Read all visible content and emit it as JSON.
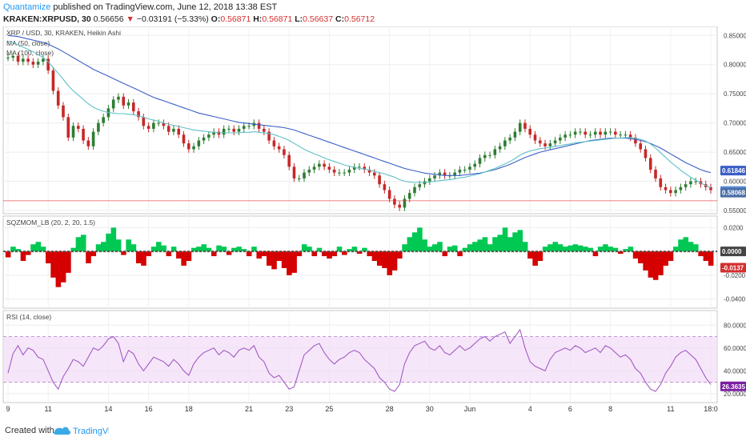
{
  "header": {
    "author": "Quantamize",
    "published": "published on TradingView.com, June 12, 2018 13:38 EST",
    "symbol": "KRAKEN:XRPUSD, 30",
    "last": "0.56656",
    "change_arrow": "▼",
    "change": "−0.03191 (−5.33%)",
    "o_label": "O:",
    "o_value": "0.56871",
    "h_label": "H:",
    "h_value": "0.56871",
    "l_label": "L:",
    "l_value": "0.56637",
    "c_label": "C:",
    "c_value": "0.56712"
  },
  "footer": {
    "created_with": "Created with",
    "brand": "TradingView"
  },
  "colors": {
    "ma50": "#5ec0c9",
    "ma100": "#3a5fc8",
    "price_line": "#e53935",
    "candle_up": "#2e7d32",
    "candle_down": "#c62828",
    "sqz_up": "#00c853",
    "sqz_down": "#d50000",
    "rsi": "#9c4fc0",
    "rsi_band": "#f1dcf7",
    "badge_ma100": "#3a5fc8",
    "badge_ma50": "#5b8fd9",
    "badge_price": "#4a6ea8",
    "badge_zero": "#444444",
    "badge_sqz": "#d32f2f",
    "badge_rsi": "#7b1fa2"
  },
  "chart_data": [
    {
      "panel": "price",
      "type": "line",
      "title": "XRP / USD, 30, KRAKEN, Heikin Ashi",
      "legend": [
        "MA (50, close)",
        "MA (100, close)"
      ],
      "ylim": [
        0.55,
        0.86
      ],
      "yticks": [
        "0.85000",
        "0.80000",
        "0.75000",
        "0.70000",
        "0.65000",
        "0.60000",
        "0.55000"
      ],
      "ytick_values": [
        0.85,
        0.8,
        0.75,
        0.7,
        0.65,
        0.6,
        0.55
      ],
      "xticks": [
        "9",
        "11",
        "14",
        "16",
        "18",
        "21",
        "23",
        "25",
        "28",
        "30",
        "Jun",
        "4",
        "6",
        "8",
        "11",
        "18:0"
      ],
      "xtick_index": [
        0,
        8,
        20,
        28,
        36,
        48,
        56,
        64,
        76,
        84,
        92,
        104,
        112,
        120,
        132,
        140
      ],
      "n": 141,
      "close": [
        0.812,
        0.815,
        0.805,
        0.81,
        0.805,
        0.8,
        0.805,
        0.81,
        0.79,
        0.755,
        0.73,
        0.71,
        0.675,
        0.695,
        0.69,
        0.67,
        0.66,
        0.685,
        0.7,
        0.71,
        0.725,
        0.74,
        0.745,
        0.73,
        0.735,
        0.72,
        0.71,
        0.695,
        0.69,
        0.7,
        0.7,
        0.695,
        0.685,
        0.69,
        0.68,
        0.665,
        0.655,
        0.66,
        0.67,
        0.675,
        0.68,
        0.685,
        0.68,
        0.69,
        0.69,
        0.685,
        0.69,
        0.695,
        0.695,
        0.7,
        0.69,
        0.685,
        0.67,
        0.66,
        0.655,
        0.645,
        0.625,
        0.605,
        0.605,
        0.615,
        0.62,
        0.625,
        0.63,
        0.625,
        0.62,
        0.615,
        0.615,
        0.615,
        0.62,
        0.625,
        0.625,
        0.62,
        0.615,
        0.61,
        0.595,
        0.585,
        0.57,
        0.56,
        0.555,
        0.57,
        0.58,
        0.59,
        0.595,
        0.6,
        0.605,
        0.61,
        0.615,
        0.61,
        0.61,
        0.615,
        0.62,
        0.62,
        0.625,
        0.63,
        0.64,
        0.645,
        0.645,
        0.655,
        0.66,
        0.67,
        0.675,
        0.685,
        0.7,
        0.69,
        0.68,
        0.67,
        0.665,
        0.66,
        0.665,
        0.67,
        0.675,
        0.68,
        0.68,
        0.685,
        0.685,
        0.68,
        0.68,
        0.685,
        0.68,
        0.685,
        0.685,
        0.68,
        0.68,
        0.68,
        0.675,
        0.665,
        0.655,
        0.64,
        0.62,
        0.605,
        0.59,
        0.585,
        0.58,
        0.585,
        0.59,
        0.595,
        0.6,
        0.6,
        0.595,
        0.59,
        0.585
      ],
      "ma50": [
        0.84,
        0.838,
        0.834,
        0.83,
        0.826,
        0.822,
        0.817,
        0.812,
        0.805,
        0.795,
        0.785,
        0.775,
        0.764,
        0.755,
        0.748,
        0.74,
        0.733,
        0.727,
        0.723,
        0.72,
        0.718,
        0.717,
        0.716,
        0.716,
        0.715,
        0.714,
        0.712,
        0.71,
        0.707,
        0.705,
        0.703,
        0.7,
        0.698,
        0.696,
        0.694,
        0.692,
        0.69,
        0.688,
        0.687,
        0.686,
        0.685,
        0.684,
        0.683,
        0.683,
        0.683,
        0.683,
        0.683,
        0.684,
        0.684,
        0.685,
        0.684,
        0.683,
        0.682,
        0.68,
        0.677,
        0.674,
        0.67,
        0.665,
        0.66,
        0.655,
        0.651,
        0.647,
        0.644,
        0.64,
        0.637,
        0.634,
        0.631,
        0.628,
        0.626,
        0.624,
        0.622,
        0.621,
        0.619,
        0.617,
        0.615,
        0.613,
        0.61,
        0.607,
        0.603,
        0.6,
        0.599,
        0.598,
        0.598,
        0.598,
        0.599,
        0.6,
        0.601,
        0.602,
        0.603,
        0.604,
        0.606,
        0.607,
        0.609,
        0.611,
        0.613,
        0.616,
        0.619,
        0.622,
        0.626,
        0.63,
        0.634,
        0.639,
        0.645,
        0.649,
        0.652,
        0.654,
        0.656,
        0.657,
        0.658,
        0.66,
        0.661,
        0.663,
        0.664,
        0.666,
        0.667,
        0.668,
        0.669,
        0.67,
        0.671,
        0.672,
        0.673,
        0.674,
        0.674,
        0.675,
        0.675,
        0.674,
        0.672,
        0.669,
        0.664,
        0.657,
        0.649,
        0.641,
        0.633,
        0.626,
        0.619,
        0.613,
        0.607,
        0.602,
        0.597,
        0.593,
        0.589
      ],
      "ma100": [
        0.85,
        0.849,
        0.848,
        0.846,
        0.844,
        0.842,
        0.84,
        0.838,
        0.835,
        0.831,
        0.827,
        0.822,
        0.817,
        0.812,
        0.807,
        0.802,
        0.797,
        0.792,
        0.788,
        0.784,
        0.78,
        0.776,
        0.772,
        0.768,
        0.764,
        0.76,
        0.756,
        0.752,
        0.748,
        0.744,
        0.741,
        0.738,
        0.735,
        0.732,
        0.729,
        0.726,
        0.723,
        0.72,
        0.717,
        0.715,
        0.713,
        0.711,
        0.709,
        0.707,
        0.705,
        0.703,
        0.701,
        0.7,
        0.699,
        0.698,
        0.697,
        0.696,
        0.695,
        0.694,
        0.693,
        0.692,
        0.69,
        0.688,
        0.685,
        0.682,
        0.679,
        0.676,
        0.673,
        0.67,
        0.667,
        0.664,
        0.661,
        0.658,
        0.655,
        0.652,
        0.649,
        0.646,
        0.643,
        0.64,
        0.637,
        0.634,
        0.631,
        0.628,
        0.625,
        0.622,
        0.62,
        0.618,
        0.616,
        0.614,
        0.613,
        0.612,
        0.611,
        0.61,
        0.61,
        0.61,
        0.61,
        0.611,
        0.612,
        0.613,
        0.614,
        0.616,
        0.618,
        0.62,
        0.623,
        0.626,
        0.629,
        0.633,
        0.637,
        0.641,
        0.644,
        0.647,
        0.65,
        0.652,
        0.654,
        0.656,
        0.658,
        0.66,
        0.662,
        0.664,
        0.666,
        0.668,
        0.67,
        0.671,
        0.672,
        0.673,
        0.674,
        0.674,
        0.674,
        0.674,
        0.673,
        0.672,
        0.67,
        0.668,
        0.665,
        0.661,
        0.657,
        0.652,
        0.647,
        0.642,
        0.637,
        0.632,
        0.628,
        0.624,
        0.62,
        0.617,
        0.615
      ],
      "price_line": 0.5667,
      "badges": [
        "0.61846",
        "0.58346",
        "0.58068"
      ]
    },
    {
      "panel": "squeeze_momentum",
      "type": "area",
      "title": "SQZMOM_LB (20, 2, 20, 1.5)",
      "ylim": [
        -0.045,
        0.027
      ],
      "yticks": [
        "0.0200",
        "0.0000",
        "-0.0200",
        "-0.0400"
      ],
      "ytick_values": [
        0.02,
        0.0,
        -0.02,
        -0.04
      ],
      "values": [
        -0.005,
        0.004,
        0.002,
        -0.008,
        -0.003,
        0.006,
        0.008,
        0.004,
        -0.01,
        -0.022,
        -0.03,
        -0.026,
        -0.018,
        0.003,
        0.012,
        0.014,
        -0.01,
        -0.004,
        0.006,
        0.008,
        0.015,
        0.02,
        0.01,
        -0.003,
        0.01,
        0.006,
        -0.01,
        -0.012,
        -0.004,
        0.004,
        0.008,
        0.005,
        -0.004,
        0.004,
        -0.006,
        -0.012,
        -0.008,
        0.003,
        0.004,
        0.006,
        0.003,
        -0.004,
        0.005,
        0.004,
        -0.003,
        0.003,
        0.004,
        0.002,
        -0.004,
        0.004,
        -0.006,
        -0.004,
        -0.012,
        -0.015,
        -0.008,
        -0.014,
        -0.02,
        -0.018,
        -0.004,
        0.006,
        0.004,
        -0.004,
        0.003,
        -0.004,
        -0.006,
        -0.004,
        0.004,
        -0.003,
        0.002,
        0.004,
        -0.002,
        0.003,
        -0.004,
        -0.008,
        -0.012,
        -0.014,
        -0.02,
        -0.016,
        -0.006,
        0.006,
        0.012,
        0.016,
        0.02,
        0.01,
        0.004,
        0.006,
        0.008,
        -0.004,
        0.004,
        0.005,
        -0.004,
        0.003,
        0.006,
        0.008,
        0.01,
        0.012,
        0.006,
        0.012,
        0.014,
        0.02,
        0.012,
        0.016,
        0.018,
        0.008,
        -0.006,
        -0.012,
        -0.008,
        0.004,
        0.006,
        0.008,
        0.006,
        0.004,
        0.005,
        0.006,
        0.005,
        0.004,
        0.003,
        -0.004,
        0.004,
        0.006,
        0.004,
        0.003,
        -0.002,
        0.002,
        0.004,
        -0.006,
        -0.01,
        -0.016,
        -0.022,
        -0.024,
        -0.02,
        -0.012,
        -0.008,
        0.004,
        0.01,
        0.012,
        0.008,
        0.006,
        -0.004,
        -0.008,
        -0.012
      ],
      "badges": [
        "0.0000",
        "-0.0137"
      ]
    },
    {
      "panel": "rsi",
      "type": "line",
      "title": "RSI (14, close)",
      "ylim": [
        15,
        90
      ],
      "band": [
        30,
        70
      ],
      "yticks": [
        "80.0000",
        "60.0000",
        "40.0000",
        "20.0000"
      ],
      "ytick_values": [
        80,
        60,
        40,
        20
      ],
      "values": [
        38,
        55,
        62,
        54,
        60,
        58,
        52,
        50,
        40,
        30,
        24,
        35,
        42,
        50,
        48,
        44,
        52,
        60,
        58,
        62,
        68,
        70,
        64,
        48,
        58,
        55,
        46,
        40,
        46,
        52,
        50,
        48,
        44,
        50,
        46,
        40,
        36,
        46,
        52,
        56,
        58,
        60,
        54,
        58,
        56,
        52,
        58,
        60,
        58,
        62,
        52,
        48,
        38,
        34,
        36,
        30,
        24,
        26,
        40,
        54,
        58,
        62,
        64,
        56,
        50,
        46,
        50,
        52,
        56,
        58,
        56,
        50,
        46,
        42,
        34,
        30,
        24,
        22,
        28,
        46,
        56,
        62,
        64,
        66,
        60,
        58,
        62,
        56,
        54,
        58,
        62,
        58,
        60,
        64,
        68,
        70,
        66,
        70,
        72,
        74,
        64,
        70,
        76,
        60,
        48,
        44,
        42,
        40,
        50,
        56,
        58,
        60,
        58,
        62,
        60,
        56,
        58,
        60,
        56,
        62,
        60,
        56,
        52,
        54,
        50,
        42,
        38,
        30,
        24,
        22,
        28,
        38,
        44,
        52,
        56,
        58,
        54,
        50,
        42,
        34,
        28
      ],
      "badges": [
        "26.3635"
      ]
    }
  ]
}
